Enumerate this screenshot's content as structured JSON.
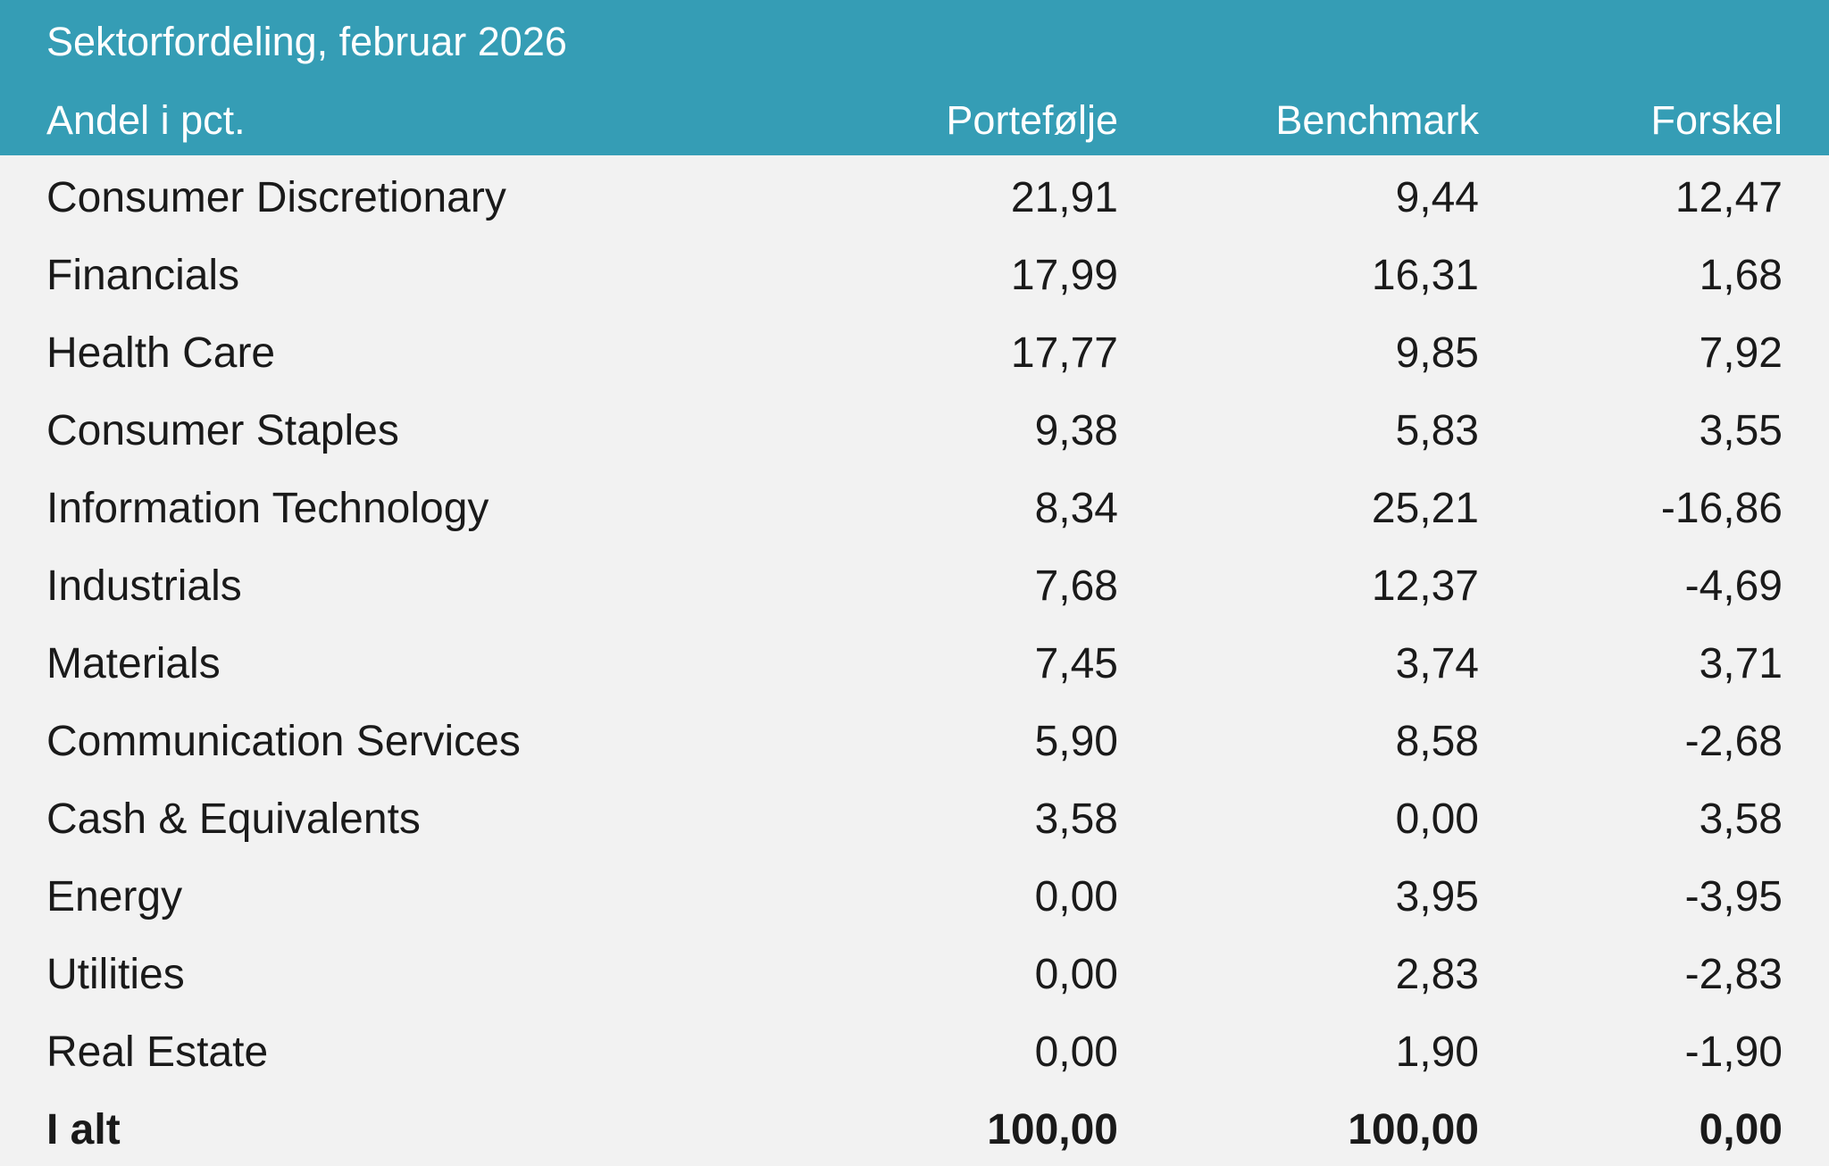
{
  "table": {
    "title": "Sektorfordeling, februar 2026",
    "columns": [
      "Andel i pct.",
      "Portefølje",
      "Benchmark",
      "Forskel"
    ],
    "rows": [
      {
        "sector": "Consumer Discretionary",
        "portfolio": "21,91",
        "benchmark": "9,44",
        "difference": "12,47"
      },
      {
        "sector": "Financials",
        "portfolio": "17,99",
        "benchmark": "16,31",
        "difference": "1,68"
      },
      {
        "sector": "Health Care",
        "portfolio": "17,77",
        "benchmark": "9,85",
        "difference": "7,92"
      },
      {
        "sector": "Consumer Staples",
        "portfolio": "9,38",
        "benchmark": "5,83",
        "difference": "3,55"
      },
      {
        "sector": "Information Technology",
        "portfolio": "8,34",
        "benchmark": "25,21",
        "difference": "-16,86"
      },
      {
        "sector": "Industrials",
        "portfolio": "7,68",
        "benchmark": "12,37",
        "difference": "-4,69"
      },
      {
        "sector": "Materials",
        "portfolio": "7,45",
        "benchmark": "3,74",
        "difference": "3,71"
      },
      {
        "sector": "Communication Services",
        "portfolio": "5,90",
        "benchmark": "8,58",
        "difference": "-2,68"
      },
      {
        "sector": "Cash & Equivalents",
        "portfolio": "3,58",
        "benchmark": "0,00",
        "difference": "3,58"
      },
      {
        "sector": "Energy",
        "portfolio": "0,00",
        "benchmark": "3,95",
        "difference": "-3,95"
      },
      {
        "sector": "Utilities",
        "portfolio": "0,00",
        "benchmark": "2,83",
        "difference": "-2,83"
      },
      {
        "sector": "Real Estate",
        "portfolio": "0,00",
        "benchmark": "1,90",
        "difference": "-1,90"
      }
    ],
    "total": {
      "label": "I alt",
      "portfolio": "100,00",
      "benchmark": "100,00",
      "difference": "0,00"
    }
  },
  "colors": {
    "header_bg": "#359db5",
    "header_text": "#ffffff",
    "body_bg": "#f2f2f2",
    "body_text": "#1a1a1a"
  },
  "chart_data": {
    "type": "table",
    "title": "Sektorfordeling, februar 2026",
    "columns": [
      "Andel i pct.",
      "Portefølje",
      "Benchmark",
      "Forskel"
    ],
    "rows": [
      [
        "Consumer Discretionary",
        21.91,
        9.44,
        12.47
      ],
      [
        "Financials",
        17.99,
        16.31,
        1.68
      ],
      [
        "Health Care",
        17.77,
        9.85,
        7.92
      ],
      [
        "Consumer Staples",
        9.38,
        5.83,
        3.55
      ],
      [
        "Information Technology",
        8.34,
        25.21,
        -16.86
      ],
      [
        "Industrials",
        7.68,
        12.37,
        -4.69
      ],
      [
        "Materials",
        7.45,
        3.74,
        3.71
      ],
      [
        "Communication Services",
        5.9,
        8.58,
        -2.68
      ],
      [
        "Cash & Equivalents",
        3.58,
        0.0,
        3.58
      ],
      [
        "Energy",
        0.0,
        3.95,
        -3.95
      ],
      [
        "Utilities",
        0.0,
        2.83,
        -2.83
      ],
      [
        "Real Estate",
        0.0,
        1.9,
        -1.9
      ],
      [
        "I alt",
        100.0,
        100.0,
        0.0
      ]
    ]
  }
}
